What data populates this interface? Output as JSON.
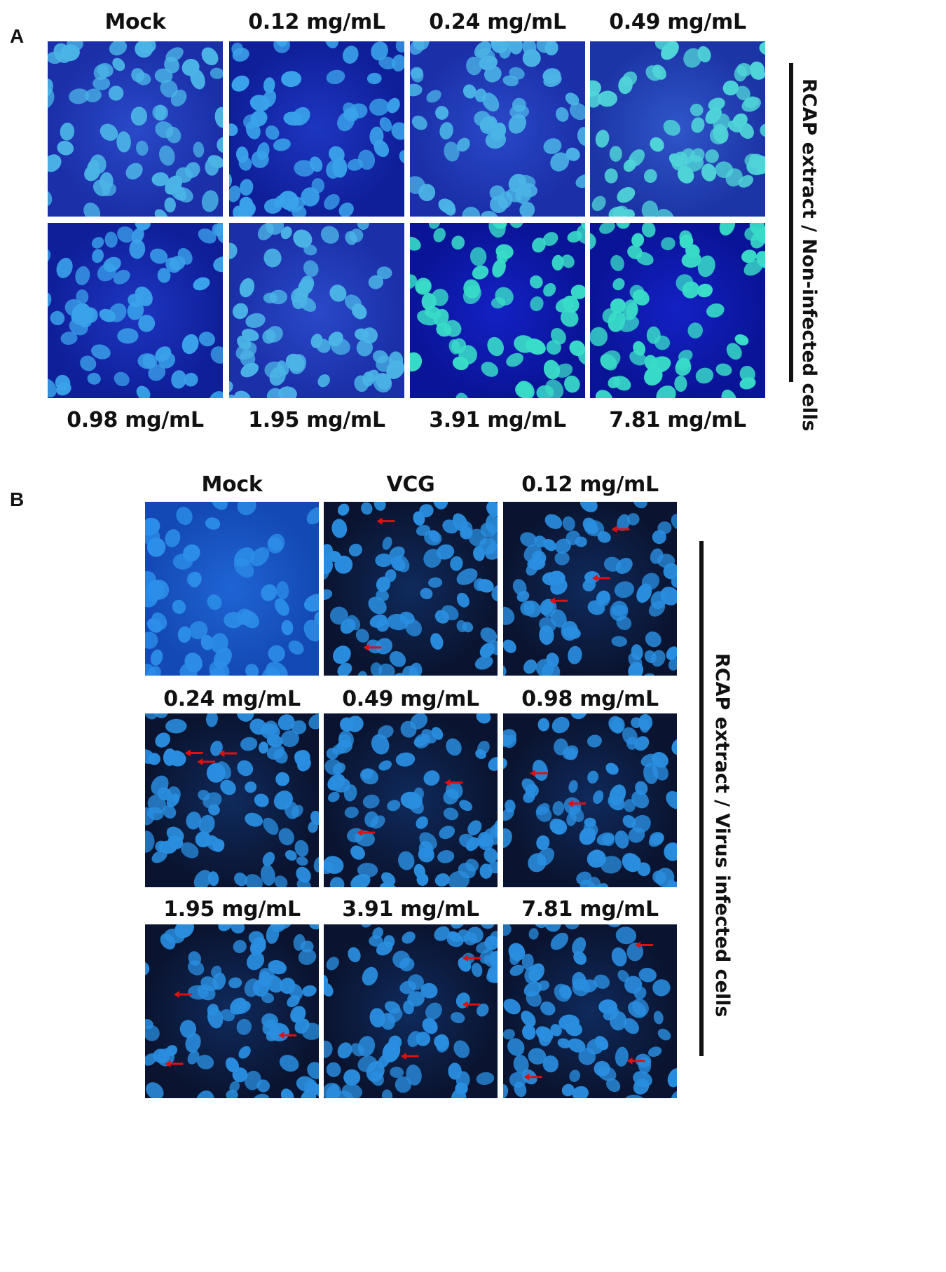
{
  "panel_a": {
    "letter": "A",
    "side_label": "RCAP extract / Non-infected cells",
    "top_labels": [
      "Mock",
      "0.12 mg/mL",
      "0.24 mg/mL",
      "0.49 mg/mL"
    ],
    "bottom_labels": [
      "0.98 mg/mL",
      "1.95 mg/mL",
      "3.91 mg/mL",
      "7.81 mg/mL"
    ]
  },
  "panel_b": {
    "letter": "B",
    "side_label": "RCAP extract / Virus infected cells",
    "row1_labels": [
      "Mock",
      "VCG",
      "0.12 mg/mL"
    ],
    "row2_labels": [
      "0.24 mg/mL",
      "0.49 mg/mL",
      "0.98 mg/mL"
    ],
    "row3_labels": [
      "1.95 mg/mL",
      "3.91 mg/mL",
      "7.81 mg/mL"
    ]
  },
  "colors": {
    "cell_background_a": "#1a2fb8",
    "nucleus_a": "#35c8e8",
    "cell_background_b": "#0a1430",
    "nucleus_b": "#2a8ee0",
    "arrow": "#e01010"
  }
}
